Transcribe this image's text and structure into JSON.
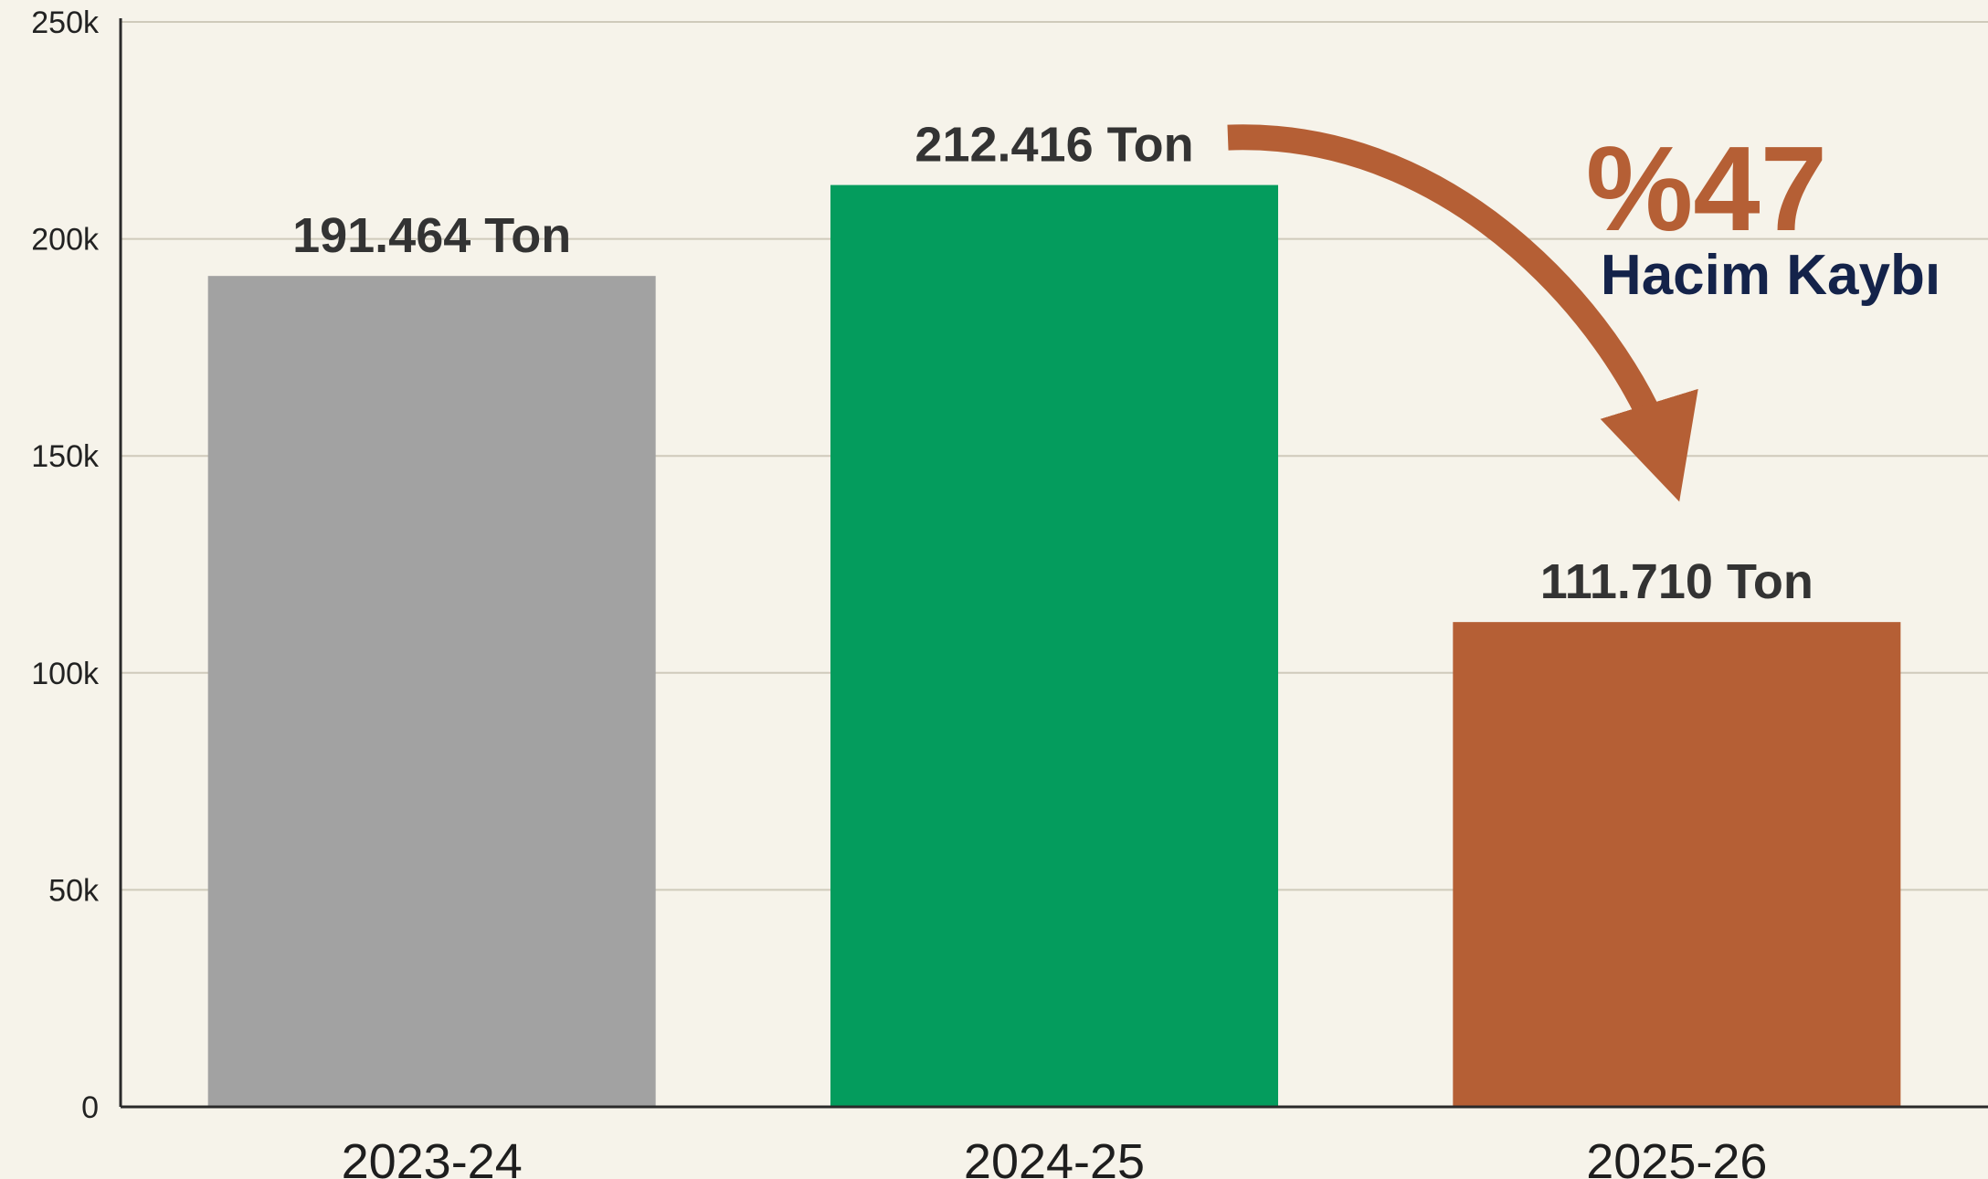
{
  "chart_data": {
    "type": "bar",
    "categories": [
      "2023-24",
      "2024-25",
      "2025-26"
    ],
    "values": [
      191464,
      212416,
      111710
    ],
    "value_labels": [
      "191.464 Ton",
      "212.416 Ton",
      "111.710 Ton"
    ],
    "bar_colors": [
      "#a2a2a2",
      "#049c5d",
      "#b55f35"
    ],
    "ylim": [
      0,
      250000
    ],
    "yticks": [
      0,
      50000,
      100000,
      150000,
      200000,
      250000
    ],
    "ytick_labels": [
      "0",
      "50k",
      "100k",
      "150k",
      "200k",
      "250k"
    ],
    "grid": true,
    "annotation": {
      "from_category": "2024-25",
      "to_category": "2025-26",
      "percent_text": "%47",
      "text": "Hacim Kaybı",
      "arrow_color": "#b55f35",
      "percent_color": "#b55f35",
      "text_color": "#14234a"
    }
  }
}
